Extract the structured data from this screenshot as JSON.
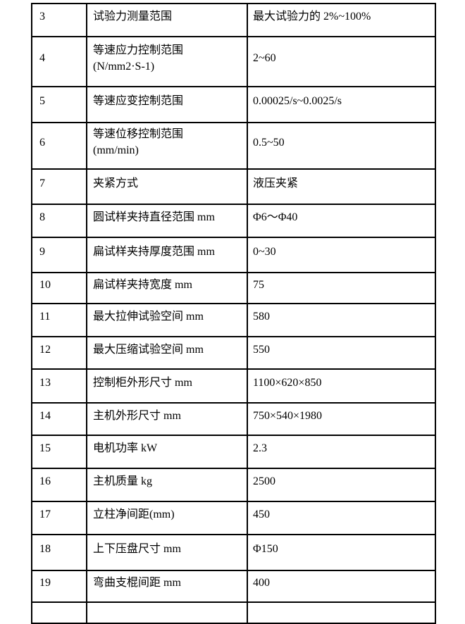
{
  "table": {
    "description": "universal testing machine technical specification table (rows 3-19 visible)",
    "rows": [
      {
        "num": "3",
        "label": "试验力测量范围",
        "value": "最大试验力的 2%~100%"
      },
      {
        "num": "4",
        "label": "等速应力控制范围\n(N/mm2·S-1)",
        "value": "2~60"
      },
      {
        "num": "5",
        "label": "等速应变控制范围",
        "value": "0.00025/s~0.0025/s"
      },
      {
        "num": "6",
        "label": "等速位移控制范围\n(mm/min)",
        "value": "0.5~50"
      },
      {
        "num": "7",
        "label": "夹紧方式",
        "value": "液压夹紧"
      },
      {
        "num": "8",
        "label": "圆试样夹持直径范围 mm",
        "value": "Φ6～Φ40"
      },
      {
        "num": "9",
        "label": "扁试样夹持厚度范围 mm",
        "value": "0~30"
      },
      {
        "num": "10",
        "label": "扁试样夹持宽度 mm",
        "value": "75"
      },
      {
        "num": "11",
        "label": "最大拉伸试验空间 mm",
        "value": "580"
      },
      {
        "num": "12",
        "label": "最大压缩试验空间 mm",
        "value": "550"
      },
      {
        "num": "13",
        "label": "控制柜外形尺寸 mm",
        "value": "1100×620×850"
      },
      {
        "num": "14",
        "label": "主机外形尺寸 mm",
        "value": "750×540×1980"
      },
      {
        "num": "15",
        "label": "电机功率 kW",
        "value": "2.3"
      },
      {
        "num": "16",
        "label": "主机质量 kg",
        "value": "2500"
      },
      {
        "num": "17",
        "label": "立柱净间距(mm)",
        "value": "450"
      },
      {
        "num": "18",
        "label": "上下压盘尺寸 mm",
        "value": "Φ150"
      },
      {
        "num": "19",
        "label": "弯曲支棍间距 mm",
        "value": "400"
      }
    ],
    "colors": {
      "border": "#000000",
      "text": "#000000",
      "background": "#ffffff"
    }
  }
}
